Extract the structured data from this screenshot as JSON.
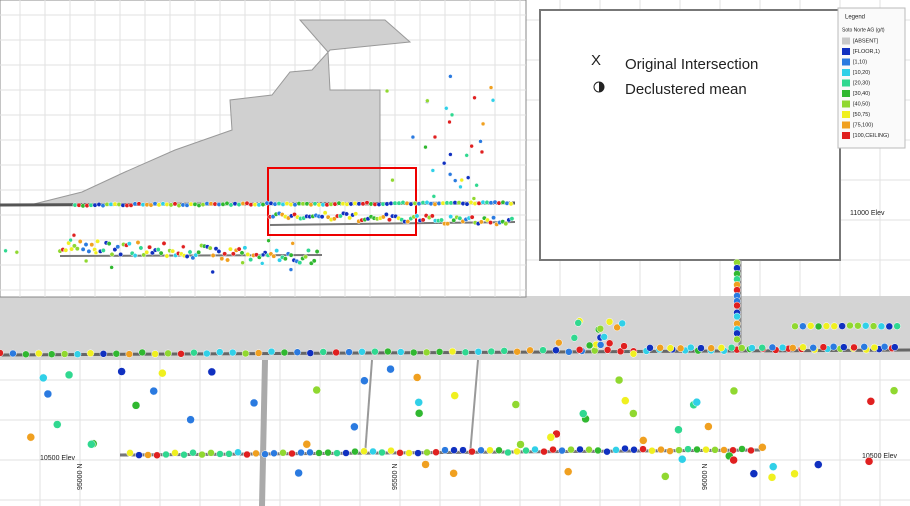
{
  "legend": {
    "title": "Legend",
    "subtitle": "Soto Norte AG (g/t)",
    "items": [
      {
        "label": "[ABSENT]",
        "color": "#c8c8c8"
      },
      {
        "label": "[FLOOR,1)",
        "color": "#1030c0"
      },
      {
        "label": "[1,10)",
        "color": "#2a7ae0"
      },
      {
        "label": "[10,20)",
        "color": "#30d0e8"
      },
      {
        "label": "[20,30)",
        "color": "#30d890"
      },
      {
        "label": "[30,40)",
        "color": "#30b830"
      },
      {
        "label": "[40,50)",
        "color": "#90d830"
      },
      {
        "label": "[50,75)",
        "color": "#f0f020"
      },
      {
        "label": "[75,100)",
        "color": "#f0a020"
      },
      {
        "label": "[100,CEILING)",
        "color": "#e02020"
      }
    ]
  },
  "key": {
    "intersection_symbol": "X",
    "intersection_label": "Original Intersection",
    "mean_label": "Declustered mean"
  },
  "axis_labels": {
    "elev_upper": "11000 Elev",
    "elev_lower": "10500 Elev",
    "northing": [
      "95000 N",
      "95500 N",
      "96000 N"
    ]
  }
}
